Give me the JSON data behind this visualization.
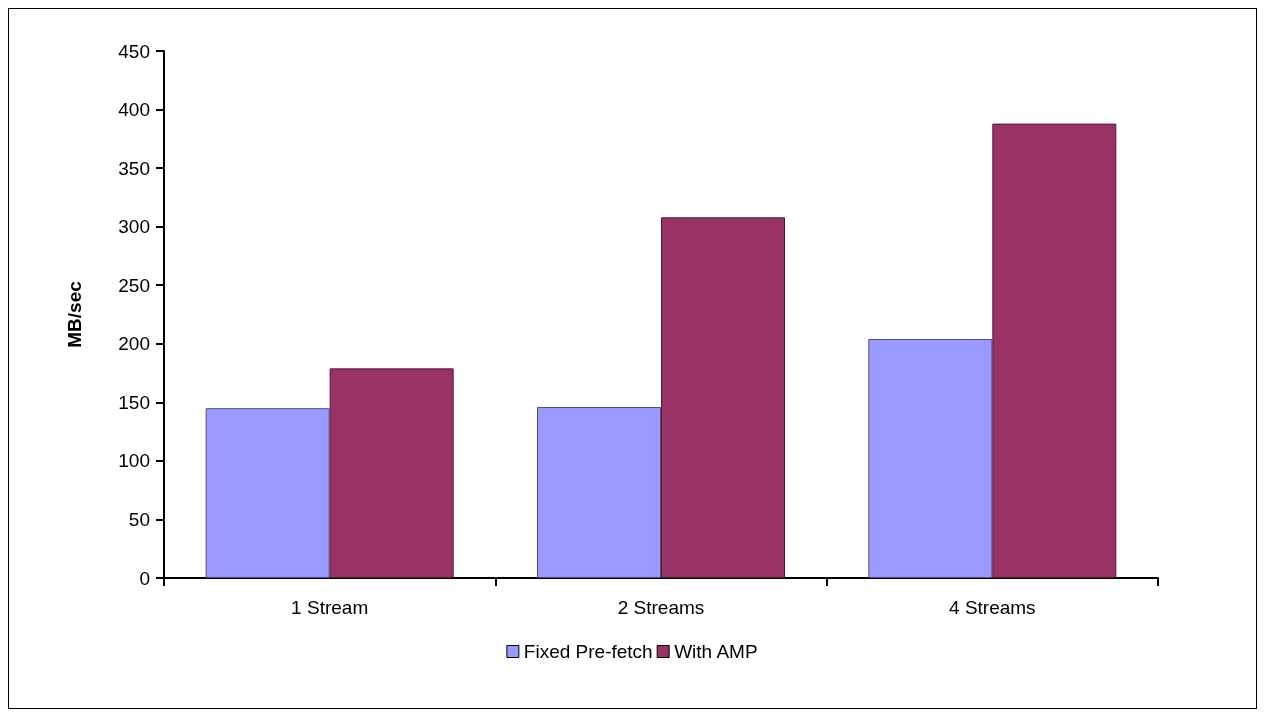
{
  "chart_data": {
    "type": "bar",
    "ylabel": "MB/sec",
    "categories": [
      "1 Stream",
      "2 Streams",
      "4 Streams"
    ],
    "series": [
      {
        "name": "Fixed Pre-fetch",
        "color": "#9999ff",
        "values": [
          145,
          146,
          204
        ]
      },
      {
        "name": "With AMP",
        "color": "#993366",
        "values": [
          179,
          308,
          388
        ]
      }
    ],
    "ylim": [
      0,
      450
    ],
    "yticks": [
      0,
      50,
      100,
      150,
      200,
      250,
      300,
      350,
      400,
      450
    ],
    "grid": false,
    "legend": "bottom"
  }
}
